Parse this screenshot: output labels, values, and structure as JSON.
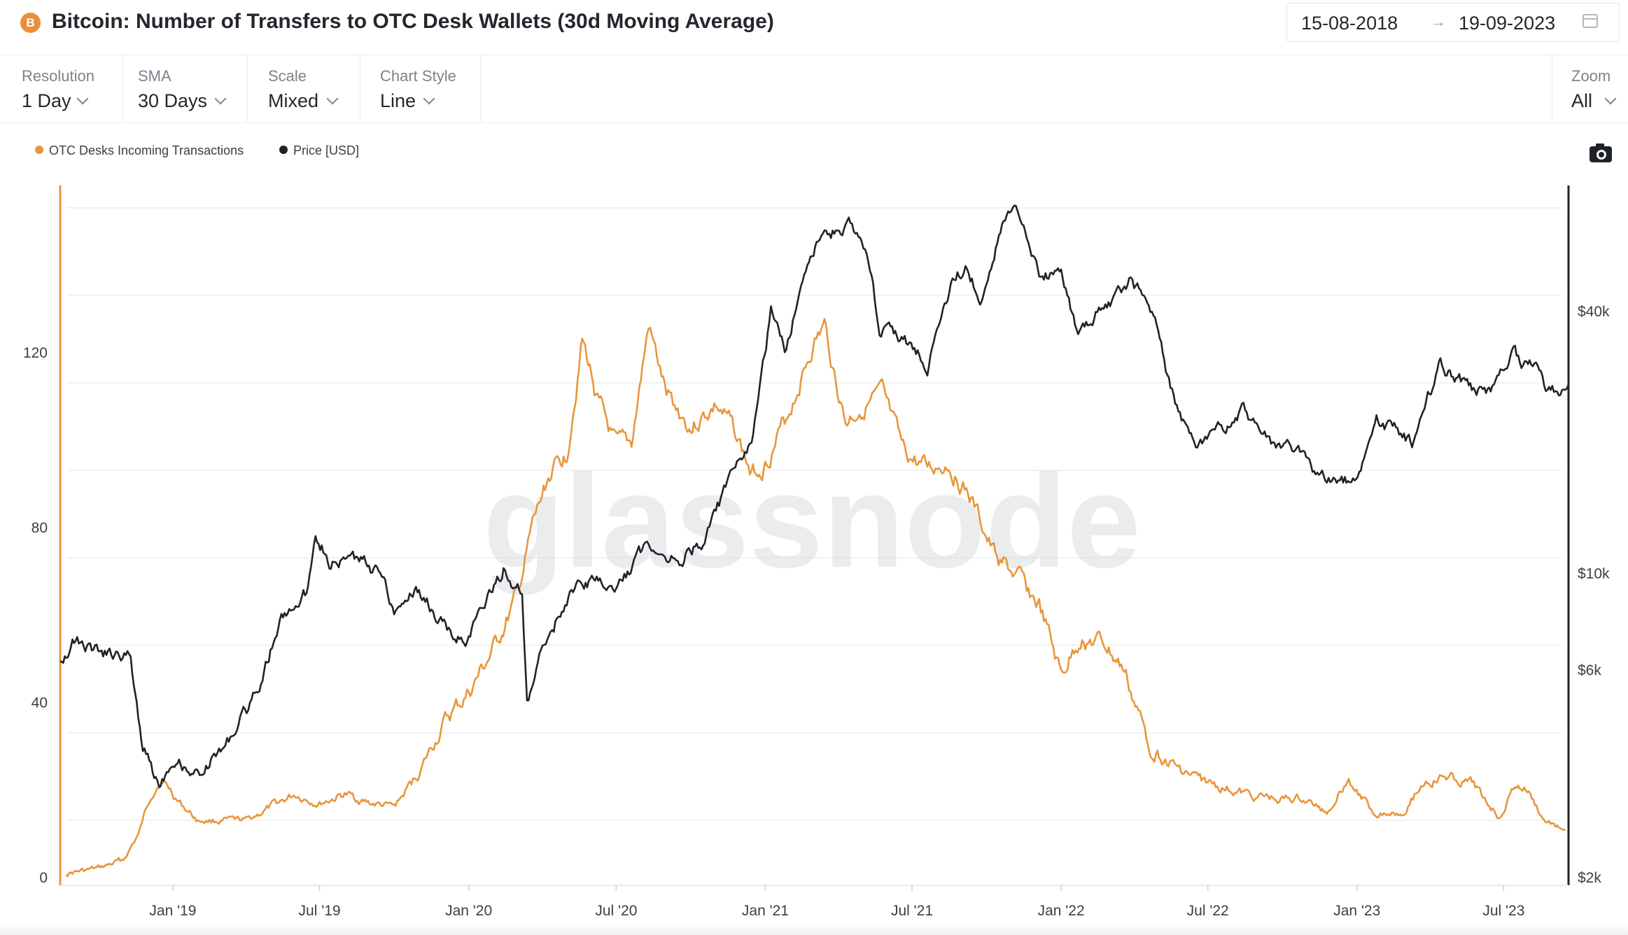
{
  "header": {
    "coin_icon": "bitcoin-icon",
    "coin_symbol": "B",
    "title": "Bitcoin: Number of Transfers to OTC Desk Wallets (30d Moving Average)",
    "date_start": "15-08-2018",
    "date_arrow": "→",
    "date_end": "19-09-2023"
  },
  "controls": {
    "resolution": {
      "label": "Resolution",
      "value": "1 Day"
    },
    "sma": {
      "label": "SMA",
      "value": "30 Days"
    },
    "scale": {
      "label": "Scale",
      "value": "Mixed"
    },
    "chart_style": {
      "label": "Chart Style",
      "value": "Line"
    },
    "zoom": {
      "label": "Zoom",
      "value": "All"
    }
  },
  "colors": {
    "otc_series": "#e8963c",
    "price_series": "#1f2329",
    "grid": "#eceef1"
  },
  "chart_data": {
    "type": "line",
    "title": "Bitcoin: Number of Transfers to OTC Desk Wallets (30d Moving Average)",
    "x_range": [
      "2018-08-15",
      "2023-09-19"
    ],
    "x_tick_labels": [
      "Jan '19",
      "Jul '19",
      "Jan '20",
      "Jul '20",
      "Jan '21",
      "Jul '21",
      "Jan '22",
      "Jul '22",
      "Jan '23",
      "Jul '23"
    ],
    "x_tick_dates": [
      "2019-01-01",
      "2019-07-01",
      "2020-01-01",
      "2020-07-01",
      "2021-01-01",
      "2021-07-01",
      "2022-01-01",
      "2022-07-01",
      "2023-01-01",
      "2023-07-01"
    ],
    "left_axis": {
      "ticks": [
        0,
        40,
        80,
        120
      ],
      "labels": [
        "0",
        "40",
        "80",
        "120"
      ],
      "ylim": [
        0,
        160
      ],
      "scale": "linear"
    },
    "right_axis": {
      "ticks": [
        2000,
        6000,
        10000,
        40000
      ],
      "labels": [
        "$2k",
        "$6k",
        "$10k",
        "$40k"
      ],
      "ylim": [
        2000,
        70000
      ],
      "scale": "log"
    },
    "legend": [
      "OTC Desks Incoming Transactions",
      "Price [USD]"
    ],
    "series": [
      {
        "name": "OTC Desks Incoming Transactions",
        "axis": "left",
        "points": [
          [
            "2018-08-22",
            1
          ],
          [
            "2018-10-01",
            2
          ],
          [
            "2018-11-01",
            4
          ],
          [
            "2018-11-20",
            10
          ],
          [
            "2018-12-05",
            19
          ],
          [
            "2018-12-15",
            22
          ],
          [
            "2018-12-25",
            21
          ],
          [
            "2019-01-10",
            17
          ],
          [
            "2019-02-01",
            13
          ],
          [
            "2019-03-01",
            13
          ],
          [
            "2019-04-01",
            13
          ],
          [
            "2019-05-01",
            16
          ],
          [
            "2019-06-01",
            19
          ],
          [
            "2019-07-01",
            17
          ],
          [
            "2019-08-01",
            19
          ],
          [
            "2019-09-01",
            17
          ],
          [
            "2019-10-01",
            16
          ],
          [
            "2019-11-01",
            24
          ],
          [
            "2019-12-01",
            35
          ],
          [
            "2020-01-01",
            42
          ],
          [
            "2020-02-01",
            52
          ],
          [
            "2020-03-01",
            64
          ],
          [
            "2020-03-20",
            80
          ],
          [
            "2020-04-10",
            92
          ],
          [
            "2020-05-01",
            97
          ],
          [
            "2020-05-20",
            123
          ],
          [
            "2020-06-10",
            108
          ],
          [
            "2020-07-01",
            98
          ],
          [
            "2020-07-20",
            99
          ],
          [
            "2020-08-10",
            126
          ],
          [
            "2020-09-01",
            110
          ],
          [
            "2020-10-01",
            103
          ],
          [
            "2020-11-01",
            108
          ],
          [
            "2020-11-25",
            102
          ],
          [
            "2020-12-15",
            92
          ],
          [
            "2021-01-01",
            95
          ],
          [
            "2021-01-25",
            104
          ],
          [
            "2021-02-10",
            112
          ],
          [
            "2021-03-01",
            122
          ],
          [
            "2021-03-15",
            126
          ],
          [
            "2021-04-10",
            104
          ],
          [
            "2021-05-01",
            108
          ],
          [
            "2021-05-25",
            110
          ],
          [
            "2021-06-20",
            97
          ],
          [
            "2021-07-20",
            93
          ],
          [
            "2021-08-15",
            95
          ],
          [
            "2021-09-10",
            87
          ],
          [
            "2021-10-10",
            74
          ],
          [
            "2021-11-10",
            68
          ],
          [
            "2021-12-05",
            62
          ],
          [
            "2022-01-01",
            46
          ],
          [
            "2022-01-25",
            55
          ],
          [
            "2022-02-25",
            53
          ],
          [
            "2022-03-20",
            47
          ],
          [
            "2022-04-20",
            30
          ],
          [
            "2022-05-25",
            25
          ],
          [
            "2022-06-25",
            22
          ],
          [
            "2022-08-15",
            19
          ],
          [
            "2022-09-25",
            18
          ],
          [
            "2022-10-25",
            18
          ],
          [
            "2022-11-25",
            15
          ],
          [
            "2022-12-20",
            23
          ],
          [
            "2023-01-20",
            15
          ],
          [
            "2023-02-25",
            15
          ],
          [
            "2023-03-25",
            22
          ],
          [
            "2023-04-25",
            23
          ],
          [
            "2023-05-25",
            21
          ],
          [
            "2023-06-25",
            14
          ],
          [
            "2023-07-15",
            21
          ],
          [
            "2023-07-30",
            20
          ],
          [
            "2023-08-20",
            13
          ],
          [
            "2023-09-15",
            11
          ]
        ]
      },
      {
        "name": "Price [USD]",
        "axis": "right",
        "points": [
          [
            "2018-08-15",
            6400
          ],
          [
            "2018-09-01",
            7000
          ],
          [
            "2018-10-01",
            6600
          ],
          [
            "2018-11-10",
            6400
          ],
          [
            "2018-11-25",
            4000
          ],
          [
            "2018-12-15",
            3300
          ],
          [
            "2019-01-01",
            3800
          ],
          [
            "2019-02-01",
            3450
          ],
          [
            "2019-03-01",
            3900
          ],
          [
            "2019-04-10",
            5100
          ],
          [
            "2019-05-15",
            7900
          ],
          [
            "2019-06-15",
            9000
          ],
          [
            "2019-06-26",
            12800
          ],
          [
            "2019-07-15",
            10500
          ],
          [
            "2019-08-15",
            10800
          ],
          [
            "2019-09-20",
            9800
          ],
          [
            "2019-10-01",
            8300
          ],
          [
            "2019-10-26",
            9300
          ],
          [
            "2019-11-20",
            8100
          ],
          [
            "2019-12-15",
            7100
          ],
          [
            "2020-01-01",
            7200
          ],
          [
            "2020-02-13",
            10300
          ],
          [
            "2020-03-07",
            8900
          ],
          [
            "2020-03-13",
            4900
          ],
          [
            "2020-04-01",
            6600
          ],
          [
            "2020-05-01",
            8800
          ],
          [
            "2020-06-01",
            9700
          ],
          [
            "2020-07-01",
            9200
          ],
          [
            "2020-08-10",
            11800
          ],
          [
            "2020-09-15",
            10700
          ],
          [
            "2020-10-20",
            12000
          ],
          [
            "2020-11-15",
            16000
          ],
          [
            "2020-12-15",
            19500
          ],
          [
            "2021-01-08",
            40000
          ],
          [
            "2021-01-25",
            32000
          ],
          [
            "2021-02-20",
            52000
          ],
          [
            "2021-03-13",
            60000
          ],
          [
            "2021-04-14",
            63000
          ],
          [
            "2021-05-12",
            50000
          ],
          [
            "2021-05-22",
            36000
          ],
          [
            "2021-06-20",
            35000
          ],
          [
            "2021-07-20",
            30000
          ],
          [
            "2021-08-20",
            47000
          ],
          [
            "2021-09-07",
            51000
          ],
          [
            "2021-09-25",
            42000
          ],
          [
            "2021-10-20",
            64000
          ],
          [
            "2021-11-10",
            67000
          ],
          [
            "2021-12-05",
            50000
          ],
          [
            "2022-01-01",
            47000
          ],
          [
            "2022-01-22",
            35500
          ],
          [
            "2022-03-28",
            47000
          ],
          [
            "2022-04-25",
            40000
          ],
          [
            "2022-05-12",
            28000
          ],
          [
            "2022-06-18",
            19000
          ],
          [
            "2022-08-14",
            24300
          ],
          [
            "2022-09-15",
            20000
          ],
          [
            "2022-10-15",
            19500
          ],
          [
            "2022-11-09",
            16800
          ],
          [
            "2022-12-31",
            16500
          ],
          [
            "2023-01-25",
            23000
          ],
          [
            "2023-03-10",
            20000
          ],
          [
            "2023-04-14",
            30300
          ],
          [
            "2023-05-15",
            27000
          ],
          [
            "2023-06-15",
            25500
          ],
          [
            "2023-07-13",
            31400
          ],
          [
            "2023-08-16",
            29000
          ],
          [
            "2023-08-20",
            26000
          ],
          [
            "2023-09-19",
            27200
          ]
        ]
      }
    ]
  }
}
